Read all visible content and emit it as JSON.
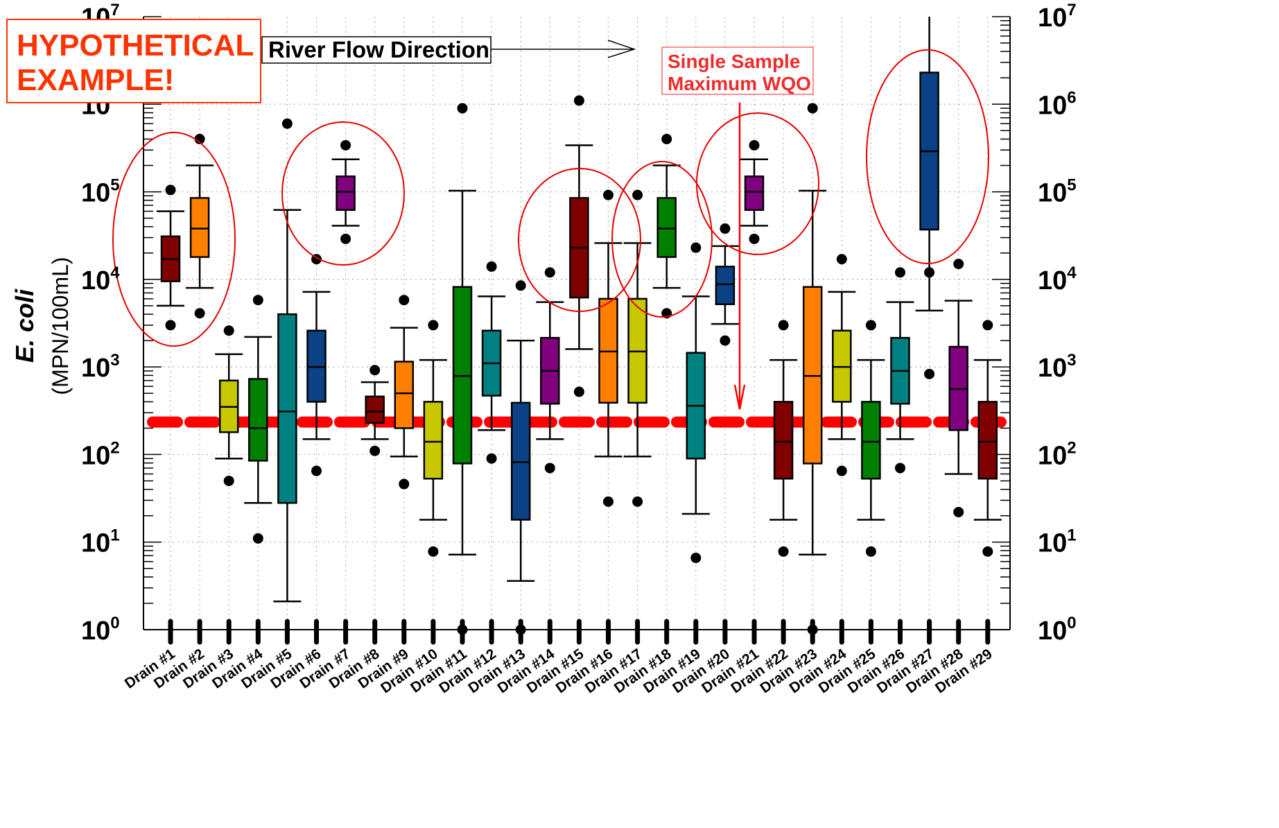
{
  "chart_data": {
    "type": "box",
    "title": "",
    "xlabel": "",
    "ylabel": "E. coli",
    "ylabel_unit": "(MPN/100mL)",
    "y_scale": "log",
    "ylim": [
      1,
      10000000
    ],
    "y_ticks": [
      {
        "base": "10",
        "exp": "0"
      },
      {
        "base": "10",
        "exp": "1"
      },
      {
        "base": "10",
        "exp": "2"
      },
      {
        "base": "10",
        "exp": "3"
      },
      {
        "base": "10",
        "exp": "4"
      },
      {
        "base": "10",
        "exp": "5"
      },
      {
        "base": "10",
        "exp": "6"
      },
      {
        "base": "10",
        "exp": "7"
      }
    ],
    "grid": true,
    "reference_line": {
      "value": 235,
      "label": "Single Sample Maximum WQO",
      "color": "#ff0000"
    },
    "flow_label": "River Flow Direction",
    "stamp": "HYPOTHETICAL EXAMPLE!",
    "categories": [
      "Drain #1",
      "Drain #2",
      "Drain #3",
      "Drain #4",
      "Drain #5",
      "Drain #6",
      "Drain #7",
      "Drain #8",
      "Drain #9",
      "Drain #10",
      "Drain #11",
      "Drain #12",
      "Drain #13",
      "Drain #14",
      "Drain #15",
      "Drain #16",
      "Drain #17",
      "Drain #18",
      "Drain #19",
      "Drain #20",
      "Drain #21",
      "Drain #22",
      "Drain #23",
      "Drain #24",
      "Drain #25",
      "Drain #26",
      "Drain #27",
      "Drain #28",
      "Drain #29"
    ],
    "boxes": [
      {
        "color": "#800000",
        "whisker_low": 5000,
        "q1": 9500,
        "median": 17000,
        "q3": 31000,
        "whisker_high": 60000,
        "outliers": [
          3000,
          105000
        ]
      },
      {
        "color": "#ff8000",
        "whisker_low": 8000,
        "q1": 18000,
        "median": 38000,
        "q3": 85000,
        "whisker_high": 200000,
        "outliers": [
          4100,
          400000
        ]
      },
      {
        "color": "#c8c800",
        "whisker_low": 90,
        "q1": 180,
        "median": 350,
        "q3": 700,
        "whisker_high": 1400,
        "outliers": [
          50,
          2600
        ]
      },
      {
        "color": "#008000",
        "whisker_low": 28,
        "q1": 85,
        "median": 200,
        "q3": 730,
        "whisker_high": 2200,
        "outliers": [
          11,
          5800
        ]
      },
      {
        "color": "#008080",
        "whisker_low": 2.1,
        "q1": 28,
        "median": 310,
        "q3": 4000,
        "whisker_high": 62000,
        "outliers": [
          600000
        ]
      },
      {
        "color": "#0b4286",
        "whisker_low": 150,
        "q1": 400,
        "median": 1000,
        "q3": 2600,
        "whisker_high": 7200,
        "outliers": [
          65,
          17000
        ]
      },
      {
        "color": "#800080",
        "whisker_low": 41000,
        "q1": 62000,
        "median": 100000,
        "q3": 150000,
        "whisker_high": 235000,
        "outliers": [
          29000,
          340000
        ]
      },
      {
        "color": "#800000",
        "whisker_low": 150,
        "q1": 230,
        "median": 310,
        "q3": 460,
        "whisker_high": 670,
        "outliers": [
          110,
          920
        ]
      },
      {
        "color": "#ff8000",
        "whisker_low": 95,
        "q1": 200,
        "median": 500,
        "q3": 1150,
        "whisker_high": 2800,
        "outliers": [
          46,
          5800
        ]
      },
      {
        "color": "#c8c800",
        "whisker_low": 18,
        "q1": 53,
        "median": 140,
        "q3": 400,
        "whisker_high": 1200,
        "outliers": [
          7.8,
          3000
        ]
      },
      {
        "color": "#008000",
        "whisker_low": 7.2,
        "q1": 79,
        "median": 790,
        "q3": 8200,
        "whisker_high": 103000,
        "outliers": [
          1,
          900000
        ]
      },
      {
        "color": "#008080",
        "whisker_low": 190,
        "q1": 470,
        "median": 1100,
        "q3": 2600,
        "whisker_high": 6400,
        "outliers": [
          90,
          14000
        ]
      },
      {
        "color": "#0b4286",
        "whisker_low": 3.6,
        "q1": 18,
        "median": 82,
        "q3": 390,
        "whisker_high": 2000,
        "outliers": [
          1,
          8500
        ]
      },
      {
        "color": "#800080",
        "whisker_low": 150,
        "q1": 380,
        "median": 900,
        "q3": 2150,
        "whisker_high": 5500,
        "outliers": [
          70,
          12000
        ]
      },
      {
        "color": "#800000",
        "whisker_low": 1600,
        "q1": 6200,
        "median": 23000,
        "q3": 85000,
        "whisker_high": 340000,
        "outliers": [
          520,
          1100000
        ]
      },
      {
        "color": "#ff8000",
        "whisker_low": 95,
        "q1": 390,
        "median": 1500,
        "q3": 6000,
        "whisker_high": 26000,
        "outliers": [
          29,
          92000
        ]
      },
      {
        "color": "#c8c800",
        "whisker_low": 95,
        "q1": 390,
        "median": 1500,
        "q3": 6000,
        "whisker_high": 26000,
        "outliers": [
          29,
          92000
        ]
      },
      {
        "color": "#008000",
        "whisker_low": 8000,
        "q1": 18000,
        "median": 38000,
        "q3": 85000,
        "whisker_high": 200000,
        "outliers": [
          4100,
          400000
        ]
      },
      {
        "color": "#008080",
        "whisker_low": 21,
        "q1": 90,
        "median": 360,
        "q3": 1450,
        "whisker_high": 6400,
        "outliers": [
          6.6,
          23000
        ]
      },
      {
        "color": "#0b4286",
        "whisker_low": 3100,
        "q1": 5200,
        "median": 8800,
        "q3": 14000,
        "whisker_high": 24000,
        "outliers": [
          2000,
          38000
        ]
      },
      {
        "color": "#800080",
        "whisker_low": 41000,
        "q1": 62000,
        "median": 100000,
        "q3": 150000,
        "whisker_high": 235000,
        "outliers": [
          29000,
          340000
        ]
      },
      {
        "color": "#800000",
        "whisker_low": 18,
        "q1": 53,
        "median": 140,
        "q3": 400,
        "whisker_high": 1200,
        "outliers": [
          7.8,
          3000
        ]
      },
      {
        "color": "#ff8000",
        "whisker_low": 7.2,
        "q1": 79,
        "median": 790,
        "q3": 8200,
        "whisker_high": 103000,
        "outliers": [
          1,
          900000
        ]
      },
      {
        "color": "#c8c800",
        "whisker_low": 150,
        "q1": 400,
        "median": 1000,
        "q3": 2600,
        "whisker_high": 7200,
        "outliers": [
          65,
          17000
        ]
      },
      {
        "color": "#008000",
        "whisker_low": 18,
        "q1": 53,
        "median": 140,
        "q3": 400,
        "whisker_high": 1200,
        "outliers": [
          7.8,
          3000
        ]
      },
      {
        "color": "#008080",
        "whisker_low": 150,
        "q1": 380,
        "median": 900,
        "q3": 2150,
        "whisker_high": 5500,
        "outliers": [
          70,
          12000
        ]
      },
      {
        "color": "#0b4286",
        "whisker_low": 4400,
        "q1": 37000,
        "median": 290000,
        "q3": 2300000,
        "whisker_high": 10000000,
        "outliers": [
          830,
          12000
        ]
      },
      {
        "color": "#800080",
        "whisker_low": 60,
        "q1": 190,
        "median": 560,
        "q3": 1700,
        "whisker_high": 5700,
        "outliers": [
          22,
          15000
        ]
      },
      {
        "color": "#800000",
        "whisker_low": 18,
        "q1": 53,
        "median": 140,
        "q3": 400,
        "whisker_high": 1200,
        "outliers": [
          7.8,
          3000
        ]
      }
    ],
    "highlighted_drains": [
      "Drain #1",
      "Drain #2",
      "Drain #7",
      "Drain #15",
      "Drain #16",
      "Drain #18",
      "Drain #21",
      "Drain #27"
    ]
  }
}
